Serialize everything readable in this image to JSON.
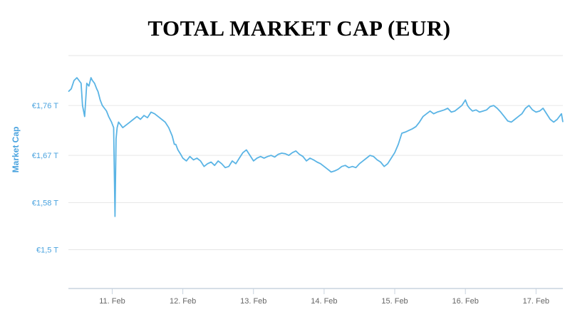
{
  "chart_data": {
    "type": "line",
    "title": "TOTAL MARKET CAP (EUR)",
    "ylabel": "Market Cap",
    "xlabel": "",
    "ylim": [
      1.43,
      1.85
    ],
    "yticks": [
      {
        "value": 1.5,
        "label": "€1,5 T"
      },
      {
        "value": 1.585,
        "label": "€1,58 T"
      },
      {
        "value": 1.67,
        "label": "€1,67 T"
      },
      {
        "value": 1.76,
        "label": "€1,76 T"
      }
    ],
    "xlim": [
      10.38,
      17.38
    ],
    "xticks": [
      {
        "value": 11,
        "label": "11. Feb"
      },
      {
        "value": 12,
        "label": "12. Feb"
      },
      {
        "value": 13,
        "label": "13. Feb"
      },
      {
        "value": 14,
        "label": "14. Feb"
      },
      {
        "value": 15,
        "label": "15. Feb"
      },
      {
        "value": 16,
        "label": "16. Feb"
      },
      {
        "value": 17,
        "label": "17. Feb"
      }
    ],
    "grid": true,
    "line_color": "#5ab4e5",
    "series": [
      {
        "x": [
          10.38,
          10.42,
          10.46,
          10.5,
          10.53,
          10.56,
          10.58,
          10.61,
          10.64,
          10.67,
          10.7,
          10.72,
          10.75,
          10.78,
          10.8,
          10.83,
          10.86,
          10.89,
          10.92,
          10.95,
          10.99,
          11.02,
          11.04,
          11.055,
          11.07,
          11.09,
          11.12,
          11.15,
          11.2,
          11.25,
          11.3,
          11.35,
          11.4,
          11.45,
          11.5,
          11.55,
          11.6,
          11.65,
          11.7,
          11.75,
          11.8,
          11.85,
          11.88,
          11.9,
          11.93,
          11.97,
          12.0,
          12.05,
          12.1,
          12.15,
          12.2,
          12.25,
          12.3,
          12.35,
          12.4,
          12.45,
          12.5,
          12.55,
          12.6,
          12.65,
          12.7,
          12.75,
          12.8,
          12.85,
          12.9,
          12.95,
          13.0,
          13.05,
          13.1,
          13.15,
          13.2,
          13.25,
          13.3,
          13.35,
          13.4,
          13.45,
          13.5,
          13.55,
          13.6,
          13.65,
          13.7,
          13.75,
          13.8,
          13.85,
          13.9,
          13.95,
          14.0,
          14.05,
          14.1,
          14.15,
          14.2,
          14.25,
          14.3,
          14.35,
          14.4,
          14.45,
          14.5,
          14.55,
          14.6,
          14.65,
          14.7,
          14.75,
          14.8,
          14.85,
          14.9,
          14.95,
          15.0,
          15.05,
          15.1,
          15.15,
          15.2,
          15.25,
          15.3,
          15.35,
          15.4,
          15.45,
          15.5,
          15.55,
          15.6,
          15.65,
          15.7,
          15.75,
          15.8,
          15.85,
          15.9,
          15.95,
          16.0,
          16.03,
          16.06,
          16.1,
          16.15,
          16.2,
          16.25,
          16.3,
          16.35,
          16.4,
          16.45,
          16.5,
          16.55,
          16.6,
          16.65,
          16.7,
          16.75,
          16.8,
          16.85,
          16.9,
          16.95,
          17.0,
          17.05,
          17.1,
          17.15,
          17.2,
          17.25,
          17.3,
          17.33,
          17.36,
          17.38
        ],
        "values": [
          1.785,
          1.79,
          1.805,
          1.81,
          1.805,
          1.8,
          1.76,
          1.74,
          1.8,
          1.795,
          1.81,
          1.805,
          1.8,
          1.79,
          1.785,
          1.77,
          1.76,
          1.755,
          1.75,
          1.74,
          1.73,
          1.72,
          1.56,
          1.7,
          1.72,
          1.73,
          1.725,
          1.72,
          1.725,
          1.73,
          1.735,
          1.74,
          1.735,
          1.742,
          1.738,
          1.748,
          1.745,
          1.74,
          1.735,
          1.73,
          1.72,
          1.705,
          1.69,
          1.69,
          1.68,
          1.672,
          1.665,
          1.66,
          1.668,
          1.662,
          1.665,
          1.66,
          1.65,
          1.655,
          1.658,
          1.652,
          1.66,
          1.655,
          1.648,
          1.65,
          1.66,
          1.655,
          1.665,
          1.675,
          1.68,
          1.67,
          1.66,
          1.665,
          1.668,
          1.665,
          1.668,
          1.67,
          1.667,
          1.672,
          1.674,
          1.673,
          1.67,
          1.675,
          1.678,
          1.672,
          1.668,
          1.66,
          1.665,
          1.662,
          1.658,
          1.655,
          1.65,
          1.645,
          1.64,
          1.642,
          1.645,
          1.65,
          1.652,
          1.648,
          1.65,
          1.648,
          1.655,
          1.66,
          1.665,
          1.67,
          1.668,
          1.662,
          1.658,
          1.65,
          1.655,
          1.665,
          1.675,
          1.69,
          1.71,
          1.712,
          1.715,
          1.718,
          1.722,
          1.73,
          1.74,
          1.745,
          1.75,
          1.745,
          1.748,
          1.75,
          1.752,
          1.755,
          1.748,
          1.75,
          1.755,
          1.76,
          1.77,
          1.76,
          1.755,
          1.75,
          1.752,
          1.748,
          1.75,
          1.752,
          1.758,
          1.76,
          1.755,
          1.748,
          1.74,
          1.732,
          1.73,
          1.735,
          1.74,
          1.745,
          1.755,
          1.76,
          1.752,
          1.748,
          1.75,
          1.755,
          1.745,
          1.735,
          1.73,
          1.735,
          1.74,
          1.745,
          1.73
        ]
      }
    ]
  }
}
